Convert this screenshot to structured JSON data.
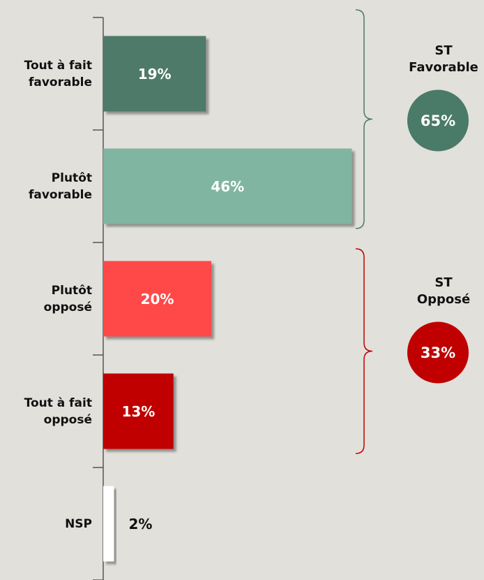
{
  "chart_data": {
    "type": "bar",
    "orientation": "horizontal",
    "categories": [
      "Tout à fait favorable",
      "Plutôt favorable",
      "Plutôt opposé",
      "Tout à fait opposé",
      "NSP"
    ],
    "values": [
      19,
      46,
      20,
      13,
      2
    ],
    "value_labels": [
      "19%",
      "46%",
      "20%",
      "13%",
      "2%"
    ],
    "colors": [
      "#4e7a69",
      "#80b5a1",
      "#ff4a4a",
      "#c00000",
      "#ffffff"
    ],
    "groups": [
      {
        "label": "ST Favorable",
        "value": 65,
        "value_label": "65%",
        "color": "#4a7a68"
      },
      {
        "label": "ST Opposé",
        "value": 33,
        "value_label": "33%",
        "color": "#c00000"
      }
    ]
  }
}
